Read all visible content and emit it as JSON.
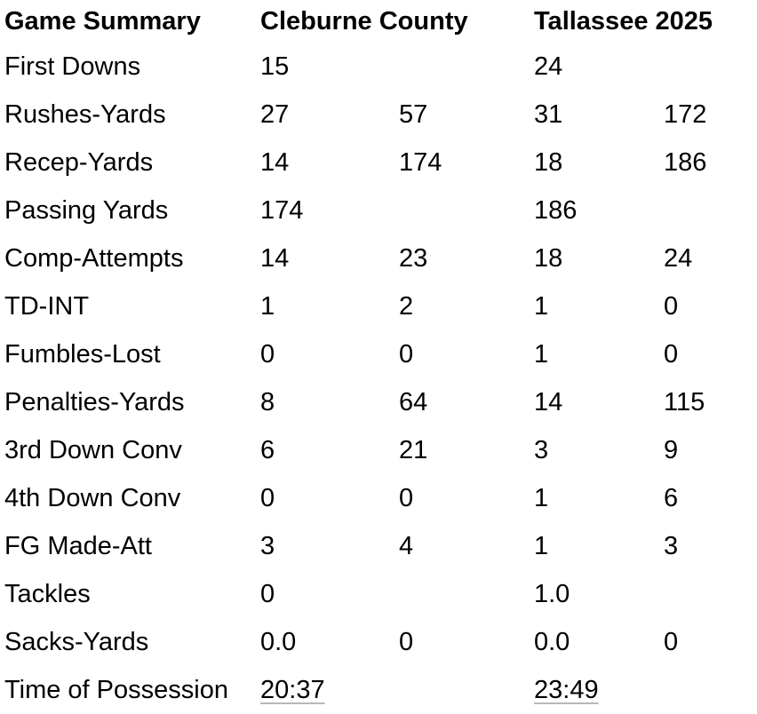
{
  "header": {
    "title": "Game Summary",
    "team1": "Cleburne County",
    "team2": "Tallassee 2025"
  },
  "rows": [
    {
      "label": "First Downs",
      "a1": "15",
      "a2": "",
      "b1": "24",
      "b2": ""
    },
    {
      "label": "Rushes-Yards",
      "a1": "27",
      "a2": "57",
      "b1": "31",
      "b2": "172"
    },
    {
      "label": "Recep-Yards",
      "a1": "14",
      "a2": "174",
      "b1": "18",
      "b2": "186"
    },
    {
      "label": "Passing Yards",
      "a1": "174",
      "a2": "",
      "b1": "186",
      "b2": ""
    },
    {
      "label": "Comp-Attempts",
      "a1": "14",
      "a2": "23",
      "b1": "18",
      "b2": "24"
    },
    {
      "label": "TD-INT",
      "a1": "1",
      "a2": "2",
      "b1": "1",
      "b2": "0"
    },
    {
      "label": "Fumbles-Lost",
      "a1": "0",
      "a2": "0",
      "b1": "1",
      "b2": "0"
    },
    {
      "label": "Penalties-Yards",
      "a1": "8",
      "a2": "64",
      "b1": "14",
      "b2": "115"
    },
    {
      "label": "3rd Down Conv",
      "a1": "6",
      "a2": "21",
      "b1": "3",
      "b2": "9"
    },
    {
      "label": "4th Down Conv",
      "a1": "0",
      "a2": "0",
      "b1": "1",
      "b2": "6"
    },
    {
      "label": "FG Made-Att",
      "a1": "3",
      "a2": "4",
      "b1": "1",
      "b2": "3"
    },
    {
      "label": "Tackles",
      "a1": "0",
      "a2": "",
      "b1": "1.0",
      "b2": ""
    },
    {
      "label": "Sacks-Yards",
      "a1": "0.0",
      "a2": "0",
      "b1": "0.0",
      "b2": "0"
    },
    {
      "label": "Time of Possession",
      "a1": "20:37",
      "a2": "",
      "b1": "23:49",
      "b2": ""
    }
  ]
}
